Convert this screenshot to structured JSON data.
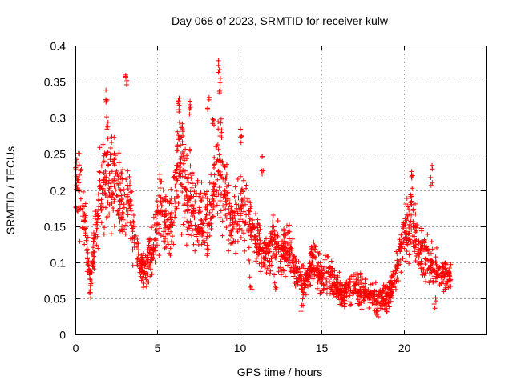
{
  "chart_data": {
    "type": "scatter",
    "title": "Day 068 of 2023, SRMTID for receiver kulw",
    "xlabel": "GPS time / hours",
    "ylabel": "SRMTID / TECUs",
    "xlim": [
      0,
      25
    ],
    "ylim": [
      0,
      0.4
    ],
    "xticks": [
      0,
      5,
      10,
      15,
      20
    ],
    "xtick_labels": [
      "0",
      "5",
      "10",
      "15",
      "20"
    ],
    "yticks": [
      0,
      0.05,
      0.1,
      0.15,
      0.2,
      0.25,
      0.3,
      0.35,
      0.4
    ],
    "ytick_labels": [
      "0",
      "0.05",
      "0.1",
      "0.15",
      "0.2",
      "0.25",
      "0.3",
      "0.35",
      "0.4"
    ],
    "grid": true,
    "marker": "+",
    "marker_color": "#ff0000",
    "x_data_range": [
      0,
      22.9
    ],
    "trend": [
      {
        "x": 0.0,
        "y": 0.22
      },
      {
        "x": 0.3,
        "y": 0.2
      },
      {
        "x": 0.6,
        "y": 0.15
      },
      {
        "x": 0.8,
        "y": 0.1
      },
      {
        "x": 0.95,
        "y": 0.07
      },
      {
        "x": 1.2,
        "y": 0.15
      },
      {
        "x": 1.5,
        "y": 0.2
      },
      {
        "x": 2.0,
        "y": 0.22
      },
      {
        "x": 2.5,
        "y": 0.21
      },
      {
        "x": 3.0,
        "y": 0.17
      },
      {
        "x": 3.3,
        "y": 0.18
      },
      {
        "x": 3.6,
        "y": 0.13
      },
      {
        "x": 4.0,
        "y": 0.09
      },
      {
        "x": 4.4,
        "y": 0.1
      },
      {
        "x": 4.8,
        "y": 0.13
      },
      {
        "x": 5.2,
        "y": 0.18
      },
      {
        "x": 5.6,
        "y": 0.14
      },
      {
        "x": 6.0,
        "y": 0.17
      },
      {
        "x": 6.3,
        "y": 0.25
      },
      {
        "x": 6.7,
        "y": 0.2
      },
      {
        "x": 7.2,
        "y": 0.18
      },
      {
        "x": 7.8,
        "y": 0.15
      },
      {
        "x": 8.2,
        "y": 0.16
      },
      {
        "x": 8.6,
        "y": 0.23
      },
      {
        "x": 9.0,
        "y": 0.2
      },
      {
        "x": 9.5,
        "y": 0.16
      },
      {
        "x": 10.0,
        "y": 0.17
      },
      {
        "x": 10.5,
        "y": 0.16
      },
      {
        "x": 11.0,
        "y": 0.13
      },
      {
        "x": 11.5,
        "y": 0.11
      },
      {
        "x": 12.0,
        "y": 0.13
      },
      {
        "x": 12.5,
        "y": 0.11
      },
      {
        "x": 13.0,
        "y": 0.12
      },
      {
        "x": 13.5,
        "y": 0.08
      },
      {
        "x": 14.0,
        "y": 0.07
      },
      {
        "x": 14.5,
        "y": 0.1
      },
      {
        "x": 15.0,
        "y": 0.08
      },
      {
        "x": 15.5,
        "y": 0.08
      },
      {
        "x": 16.0,
        "y": 0.06
      },
      {
        "x": 16.5,
        "y": 0.06
      },
      {
        "x": 17.0,
        "y": 0.07
      },
      {
        "x": 17.5,
        "y": 0.06
      },
      {
        "x": 18.0,
        "y": 0.05
      },
      {
        "x": 18.5,
        "y": 0.045
      },
      {
        "x": 19.0,
        "y": 0.05
      },
      {
        "x": 19.5,
        "y": 0.08
      },
      {
        "x": 20.0,
        "y": 0.14
      },
      {
        "x": 20.5,
        "y": 0.16
      },
      {
        "x": 21.0,
        "y": 0.11
      },
      {
        "x": 21.5,
        "y": 0.1
      },
      {
        "x": 22.0,
        "y": 0.09
      },
      {
        "x": 22.5,
        "y": 0.08
      },
      {
        "x": 22.9,
        "y": 0.08
      }
    ],
    "spikes": [
      {
        "x": 1.9,
        "y": 0.35
      },
      {
        "x": 1.95,
        "y": 0.31
      },
      {
        "x": 3.1,
        "y": 0.36
      },
      {
        "x": 6.3,
        "y": 0.34
      },
      {
        "x": 6.5,
        "y": 0.3
      },
      {
        "x": 7.0,
        "y": 0.33
      },
      {
        "x": 8.1,
        "y": 0.34
      },
      {
        "x": 8.4,
        "y": 0.31
      },
      {
        "x": 8.75,
        "y": 0.385
      },
      {
        "x": 8.8,
        "y": 0.36
      },
      {
        "x": 8.9,
        "y": 0.3
      },
      {
        "x": 10.1,
        "y": 0.295
      },
      {
        "x": 11.4,
        "y": 0.25
      },
      {
        "x": 20.5,
        "y": 0.24
      },
      {
        "x": 21.7,
        "y": 0.235
      }
    ],
    "dips": [
      {
        "x": 0.85,
        "y": 0.05
      },
      {
        "x": 4.2,
        "y": 0.07
      },
      {
        "x": 10.7,
        "y": 0.06
      },
      {
        "x": 12.2,
        "y": 0.055
      },
      {
        "x": 13.8,
        "y": 0.03
      },
      {
        "x": 16.2,
        "y": 0.04
      },
      {
        "x": 18.3,
        "y": 0.03
      },
      {
        "x": 19.0,
        "y": 0.025
      },
      {
        "x": 21.9,
        "y": 0.035
      }
    ]
  }
}
